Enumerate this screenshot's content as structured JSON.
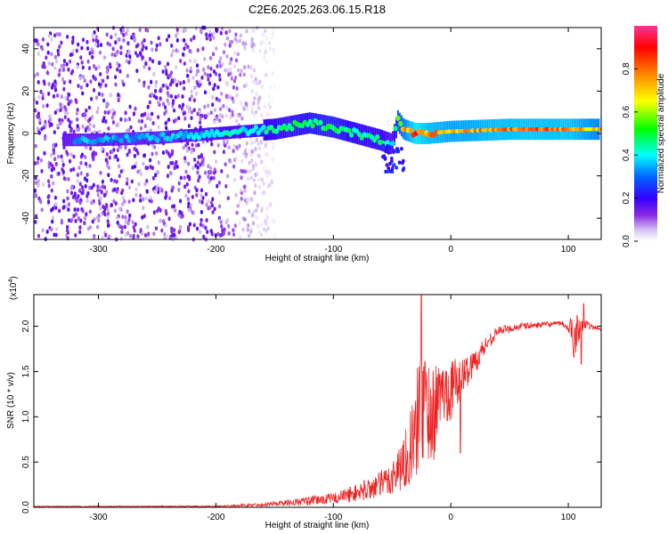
{
  "title": "C2E6.2025.263.06.15.R18",
  "colors": {
    "trace": "#ee2222",
    "bg_low": "#ffffff",
    "spectral": [
      "#ffffff",
      "#d8c8f4",
      "#8a2be2",
      "#6a00ff",
      "#0000ff",
      "#00ffff",
      "#00ff00",
      "#ffff00",
      "#ff8000",
      "#ff0000",
      "#ff33aa"
    ]
  },
  "chart_data": [
    {
      "type": "heatmap",
      "name": "spectrogram",
      "xlabel": "Height of straight line (km)",
      "ylabel": "Frequency (Hz)",
      "xlim": [
        -355,
        128
      ],
      "ylim": [
        -50,
        50
      ],
      "xticks": [
        -300,
        -200,
        -100,
        0,
        100
      ],
      "xtick_labels": [
        "-300",
        "-200",
        "-100",
        "0",
        "100"
      ],
      "yticks": [
        -40,
        -20,
        0,
        20,
        40
      ],
      "ytick_labels": [
        "-40",
        "-20",
        "0",
        "20",
        "40"
      ],
      "colorbar": {
        "label": "Normalized spectral amplitude",
        "range": [
          0,
          1
        ],
        "ticks": [
          0.0,
          0.2,
          0.4,
          0.6,
          0.8
        ],
        "tick_labels": [
          "0.0",
          "0.2",
          "0.4",
          "0.6",
          "0.8"
        ]
      },
      "ridge": {
        "description": "narrow Doppler line near 0 Hz",
        "x": [
          -300,
          -250,
          -200,
          -150,
          -120,
          -100,
          -80,
          -60,
          -50,
          -45,
          -40,
          -30,
          -20,
          0,
          50,
          100,
          128
        ],
        "freq": [
          -3,
          -2,
          0,
          2,
          5,
          3,
          0,
          -3,
          -5,
          6,
          2,
          0,
          0,
          1,
          2,
          2,
          2
        ],
        "amplitude": [
          0.35,
          0.35,
          0.4,
          0.45,
          0.5,
          0.5,
          0.45,
          0.45,
          0.35,
          0.6,
          0.7,
          0.85,
          0.8,
          0.75,
          0.8,
          0.8,
          0.7
        ]
      },
      "noise_region": {
        "x_from": -355,
        "x_to": -165,
        "amplitude": 0.15
      }
    },
    {
      "type": "line",
      "name": "snr",
      "xlabel": "Height of straight line (km)",
      "ylabel": "SNR (10 * v/v)",
      "scale_label": "(x10",
      "scale_exp": "4",
      "scale_close": ")",
      "xlim": [
        -355,
        128
      ],
      "ylim": [
        0,
        2.35
      ],
      "xticks": [
        -300,
        -200,
        -100,
        0,
        100
      ],
      "xtick_labels": [
        "-300",
        "-200",
        "-100",
        "0",
        "100"
      ],
      "yticks": [
        0.0,
        0.5,
        1.0,
        1.5,
        2.0
      ],
      "ytick_labels": [
        "0.0",
        "0.5",
        "1.0",
        "1.5",
        "2.0"
      ],
      "envelope": {
        "x": [
          -355,
          -200,
          -160,
          -120,
          -100,
          -80,
          -60,
          -50,
          -40,
          -30,
          -25,
          -20,
          -15,
          -10,
          0,
          10,
          20,
          30,
          40,
          60,
          80,
          95,
          100,
          105,
          110,
          115,
          120,
          128
        ],
        "mean": [
          0.01,
          0.01,
          0.03,
          0.07,
          0.1,
          0.16,
          0.25,
          0.33,
          0.5,
          0.8,
          1.2,
          1.1,
          1.0,
          1.25,
          1.3,
          1.45,
          1.6,
          1.8,
          1.95,
          2.0,
          2.02,
          2.03,
          1.97,
          1.92,
          2.0,
          2.02,
          1.99,
          1.97
        ],
        "spread": [
          0.005,
          0.008,
          0.02,
          0.05,
          0.06,
          0.1,
          0.15,
          0.2,
          0.3,
          0.5,
          0.9,
          0.6,
          0.55,
          0.35,
          0.35,
          0.2,
          0.15,
          0.1,
          0.05,
          0.04,
          0.03,
          0.03,
          0.04,
          0.3,
          0.12,
          0.05,
          0.03,
          0.02
        ]
      },
      "spikes": [
        {
          "x": -25,
          "y": 2.35
        },
        {
          "x": 8,
          "y": 0.6
        },
        {
          "x": 111,
          "y": 1.58
        },
        {
          "x": 113,
          "y": 2.25
        }
      ]
    }
  ]
}
